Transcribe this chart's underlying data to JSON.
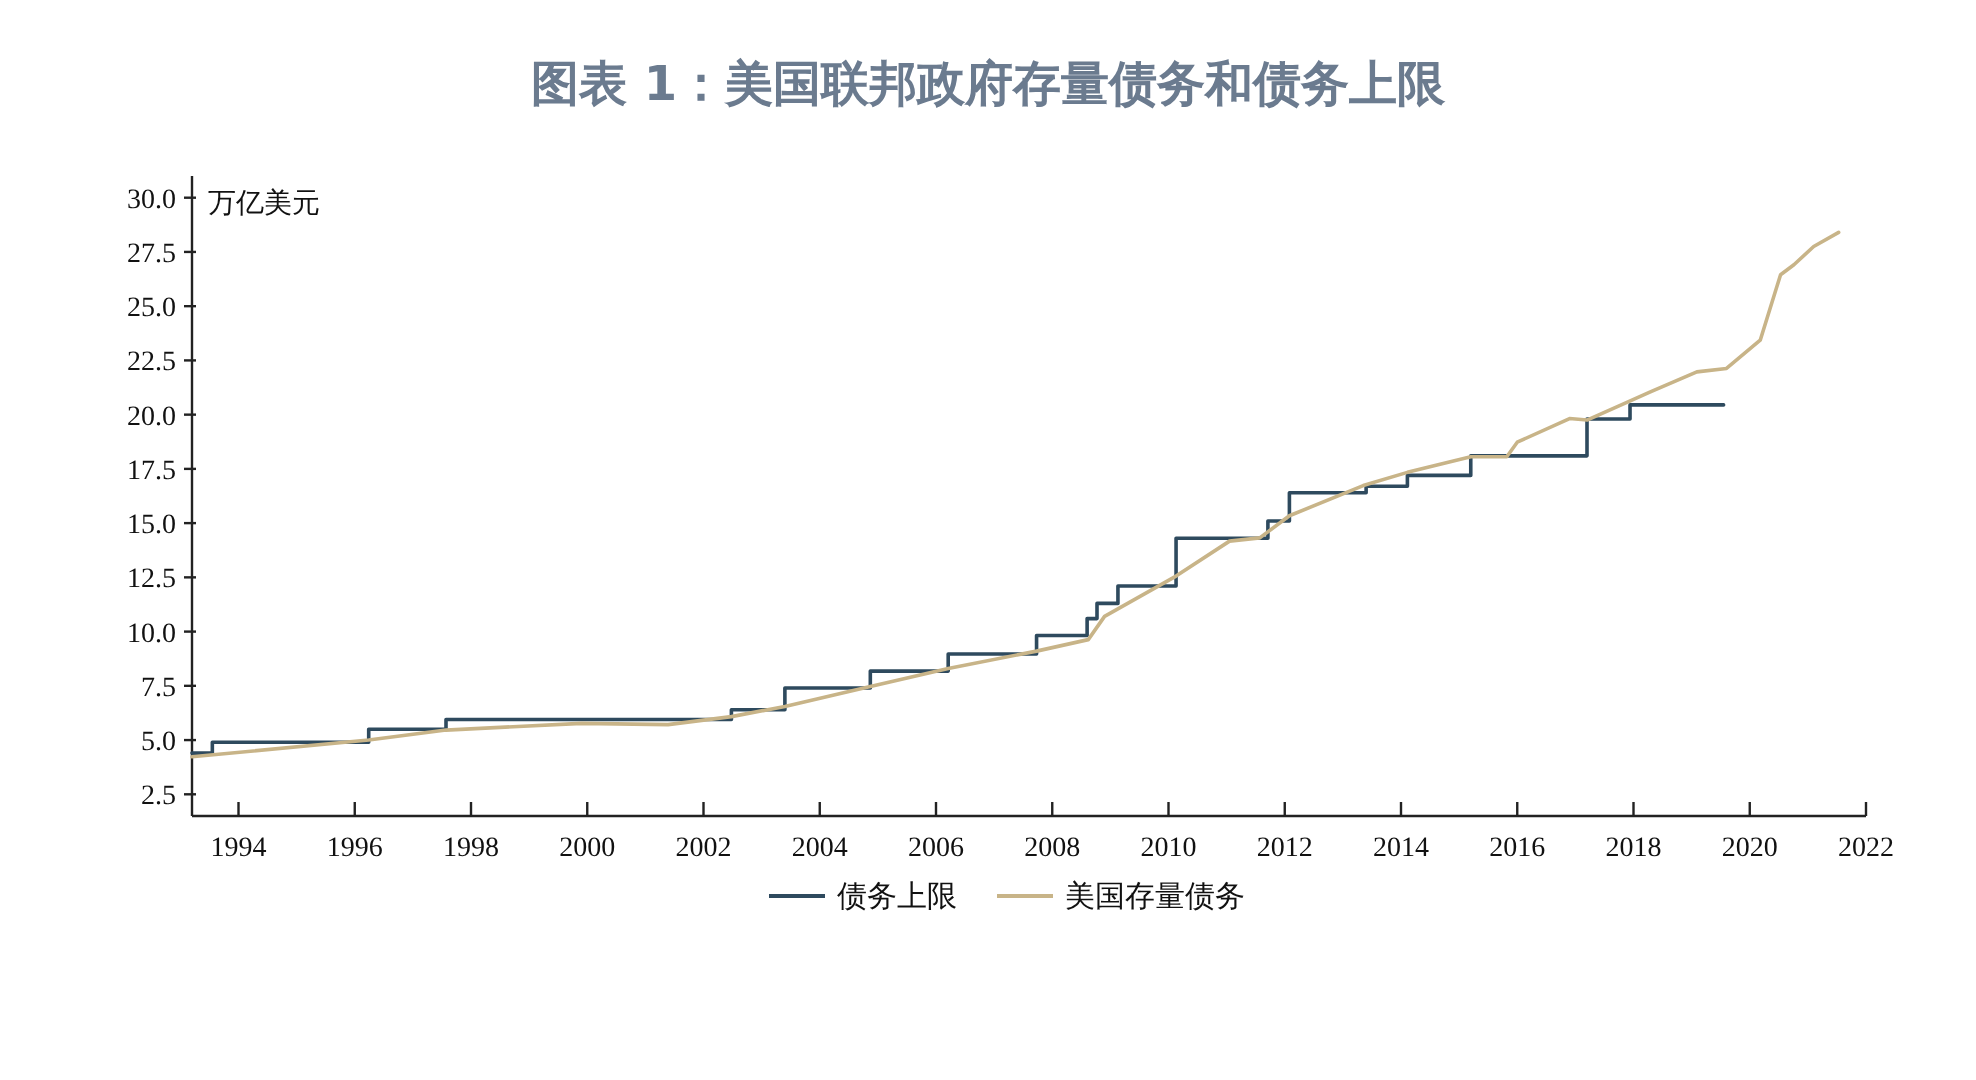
{
  "chart_data": {
    "type": "line",
    "title": "图表 1：美国联邦政府存量债务和债务上限",
    "ylabel": "万亿美元",
    "xlim": [
      1993.2,
      2022
    ],
    "xticks": [
      1994,
      1996,
      1998,
      2000,
      2002,
      2004,
      2006,
      2008,
      2010,
      2012,
      2014,
      2016,
      2018,
      2020,
      2022
    ],
    "ylim": [
      1.5,
      31
    ],
    "yticks": [
      {
        "value": 2.5,
        "label": "2.5"
      },
      {
        "value": 5,
        "label": "5.0"
      },
      {
        "value": 7.5,
        "label": "7.5"
      },
      {
        "value": 10,
        "label": "10.0"
      },
      {
        "value": 12.5,
        "label": "12.5"
      },
      {
        "value": 15,
        "label": "15.0"
      },
      {
        "value": 17.5,
        "label": "17.5"
      },
      {
        "value": 20,
        "label": "20.0"
      },
      {
        "value": 22.5,
        "label": "22.5"
      },
      {
        "value": 25,
        "label": "25.0"
      },
      {
        "value": 27.5,
        "label": "27.5"
      },
      {
        "value": 30,
        "label": "30.0"
      }
    ],
    "legend": "bottom",
    "series": [
      {
        "name": "债务上限",
        "type": "step",
        "color": "#2e4a5e",
        "x": [
          1993.2,
          1993.55,
          1996.24,
          1997.57,
          2002.48,
          2003.4,
          2004.87,
          2006.21,
          2007.73,
          2008.6,
          2008.77,
          2009.13,
          2010.13,
          2011.71,
          2012.08,
          2013.4,
          2014.11,
          2015.2,
          2017.2,
          2017.94,
          2019.55
        ],
        "values": [
          4.4,
          4.9,
          5.5,
          5.95,
          6.4,
          7.4,
          8.18,
          8.97,
          9.82,
          10.6,
          11.3,
          12.1,
          14.3,
          15.1,
          16.4,
          16.7,
          17.2,
          18.1,
          19.8,
          20.45,
          20.45
        ]
      },
      {
        "name": "美国存量债务",
        "type": "line",
        "color": "#c8b488",
        "x": [
          1993.2,
          1996.24,
          1997.57,
          1999.9,
          2001.39,
          2002.48,
          2003.4,
          2004.87,
          2006.21,
          2007.73,
          2008.62,
          2008.9,
          2010.13,
          2011.05,
          2011.57,
          2012.08,
          2013.35,
          2014.11,
          2015.2,
          2015.82,
          2016.0,
          2016.9,
          2017.2,
          2017.77,
          2018.29,
          2019.09,
          2019.6,
          2020.18,
          2020.53,
          2020.76,
          2021.1,
          2021.53
        ],
        "values": [
          4.23,
          5.0,
          5.46,
          5.77,
          5.71,
          6.08,
          6.55,
          7.47,
          8.3,
          9.1,
          9.63,
          10.7,
          12.56,
          14.17,
          14.32,
          15.34,
          16.73,
          17.34,
          18.06,
          18.06,
          18.73,
          19.82,
          19.75,
          20.43,
          21.05,
          21.97,
          22.13,
          23.43,
          26.45,
          26.91,
          27.75,
          28.4
        ]
      }
    ]
  }
}
